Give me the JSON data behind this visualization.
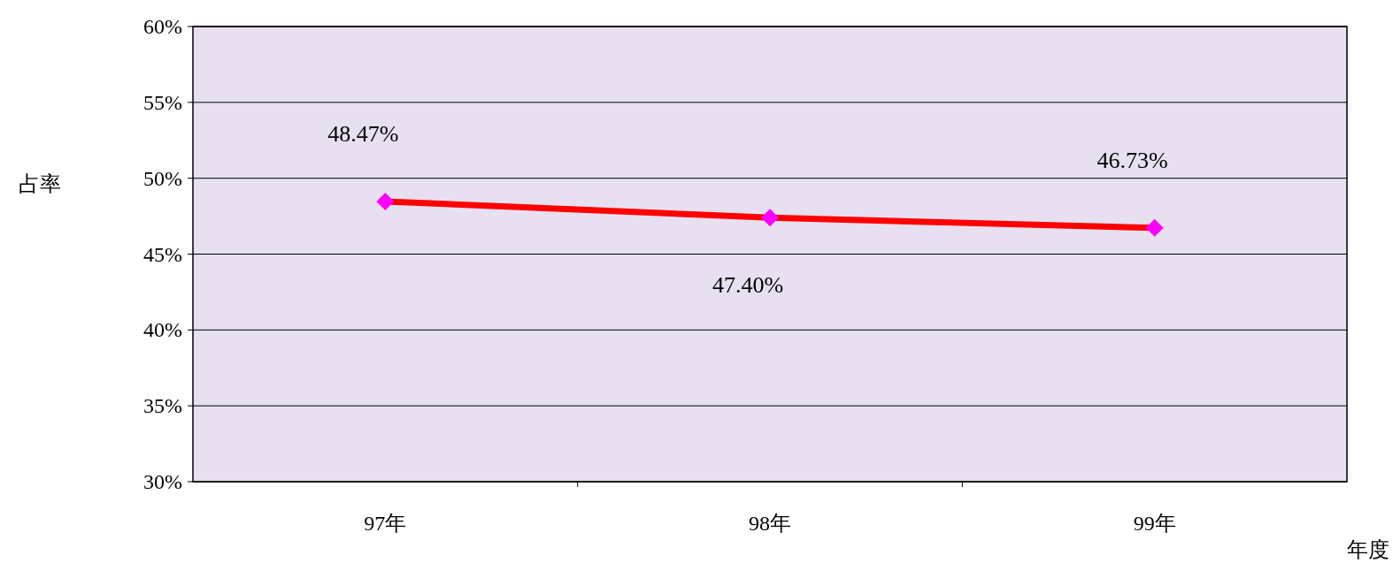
{
  "chart_data": {
    "type": "line",
    "xlabel": "年度",
    "ylabel": "占率",
    "categories": [
      "97年",
      "98年",
      "99年"
    ],
    "series": [
      {
        "color": "#ff0000",
        "values": [
          48.47,
          47.4,
          46.73
        ],
        "value_labels": [
          "48.47%",
          "47.40%",
          "46.73%"
        ]
      }
    ],
    "ylim": [
      30,
      60
    ],
    "yticks": [
      {
        "value": 30,
        "label": "30%"
      },
      {
        "value": 35,
        "label": "35%"
      },
      {
        "value": 40,
        "label": "40%"
      },
      {
        "value": 45,
        "label": "45%"
      },
      {
        "value": 50,
        "label": "50%"
      },
      {
        "value": 55,
        "label": "55%"
      },
      {
        "value": 60,
        "label": "60%"
      }
    ],
    "grid": "y",
    "marker": "diamond",
    "line_style": "solid"
  }
}
